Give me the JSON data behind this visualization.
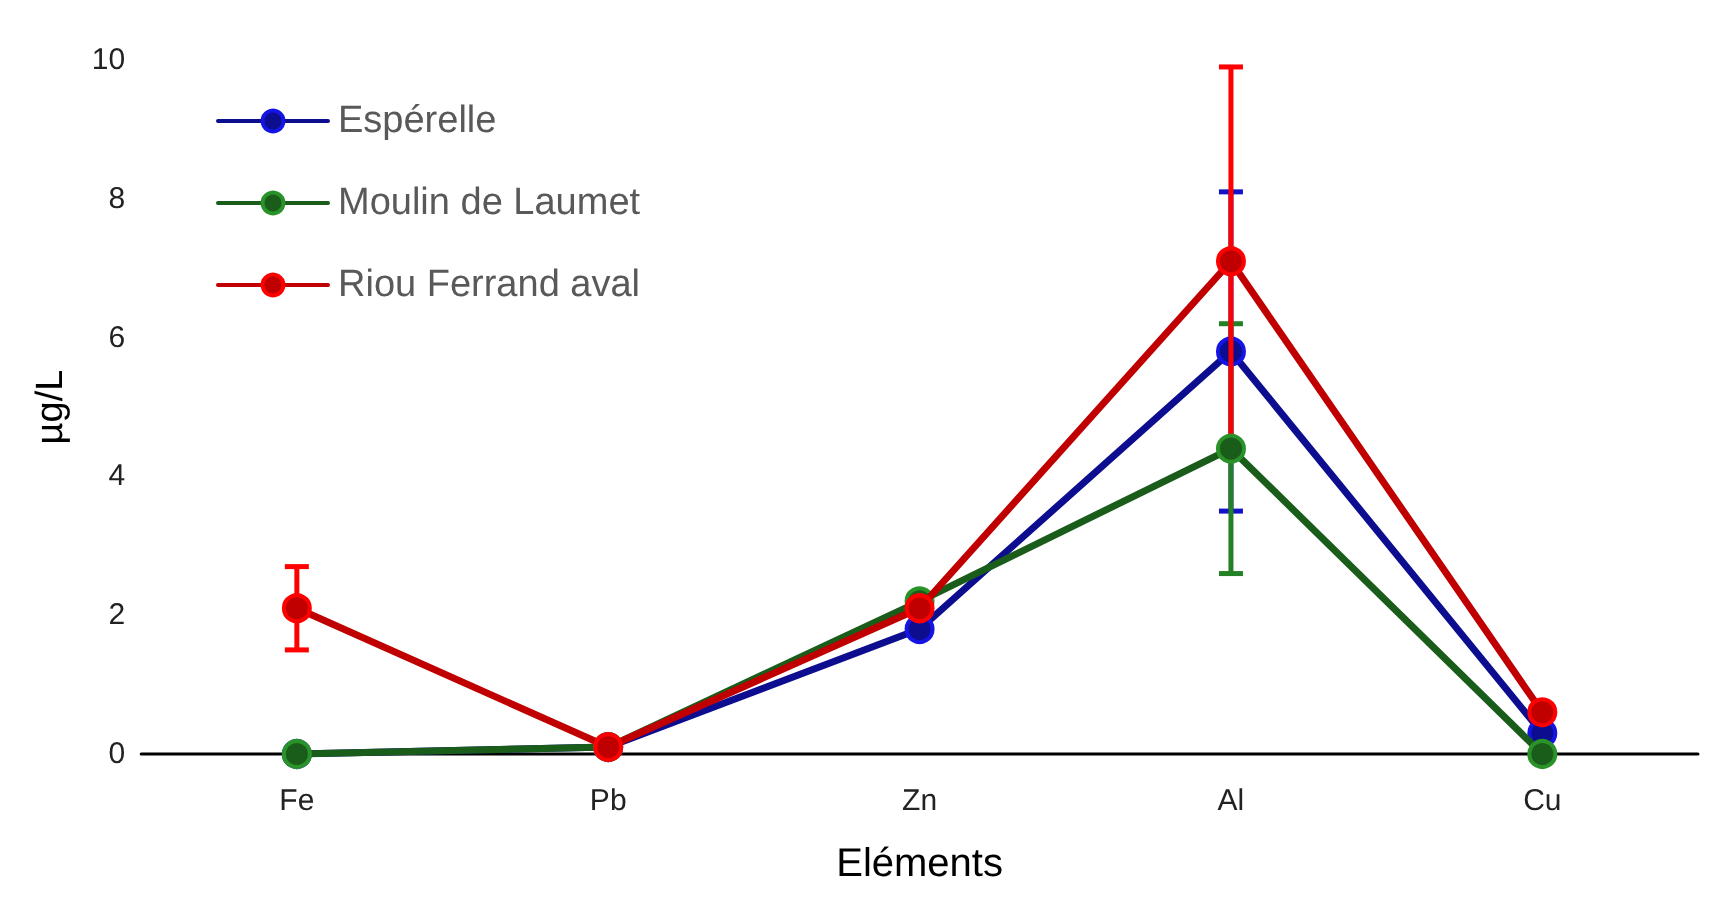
{
  "chart_data": {
    "type": "line",
    "xlabel": "Eléments",
    "ylabel": "µg/L",
    "categories": [
      "Fe",
      "Pb",
      "Zn",
      "Al",
      "Cu"
    ],
    "series": [
      {
        "name": "Espérelle",
        "color": "#0d0d8f",
        "values": [
          0,
          0.1,
          1.8,
          5.8,
          0.3
        ],
        "errors": [
          null,
          null,
          null,
          2.3,
          null
        ]
      },
      {
        "name": "Moulin de Laumet",
        "color": "#1a5c1a",
        "values": [
          0,
          0.1,
          2.2,
          4.4,
          0
        ],
        "errors": [
          null,
          null,
          null,
          1.8,
          null
        ]
      },
      {
        "name": "Riou Ferrand aval",
        "color": "#c00000",
        "values": [
          2.1,
          0.1,
          2.1,
          7.1,
          0.6
        ],
        "errors": [
          0.6,
          null,
          null,
          2.8,
          null
        ]
      }
    ],
    "ylim": [
      0,
      10
    ],
    "yticks": [
      0,
      2,
      4,
      6,
      8,
      10
    ],
    "grid": false,
    "legend": "top left",
    "marker": "circle",
    "line_style": "solid"
  }
}
